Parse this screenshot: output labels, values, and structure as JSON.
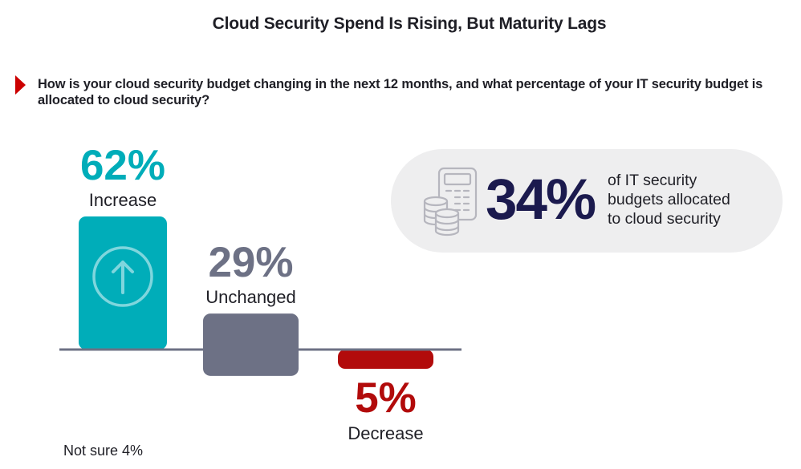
{
  "header": {
    "title": "Cloud Security Spend Is Rising, But Maturity Lags",
    "question": "How is your cloud security budget changing in the next 12 months, and what percentage of your IT security budget is allocated to cloud security?"
  },
  "callout": {
    "icon": "calculator-coins-icon",
    "value": "34%",
    "text_lines": [
      "of IT security",
      "budgets allocated",
      "to cloud security"
    ]
  },
  "footnote": "Not sure 4%",
  "colors": {
    "increase": "#00adb9",
    "unchanged": "#6d7185",
    "decrease": "#b20b0b",
    "baseline": "#6d7185",
    "callout_value": "#1b1a4e",
    "marker": "#cc0000"
  },
  "chart_data": {
    "type": "bar",
    "title": "Cloud Security Spend Is Rising, But Maturity Lags",
    "subtitle": "How is your cloud security budget changing in the next 12 months, and what percentage of your IT security budget is allocated to cloud security?",
    "categories": [
      "Increase",
      "Unchanged",
      "Decrease"
    ],
    "values": [
      62,
      29,
      5
    ],
    "direction": [
      "up",
      "neutral",
      "down"
    ],
    "value_labels": [
      "62%",
      "29%",
      "5%"
    ],
    "unit": "%",
    "xlabel": "",
    "ylabel": "",
    "grid": false,
    "legend": "none",
    "annotations": [
      "Not sure 4%",
      "34% of IT security budgets allocated to cloud security"
    ]
  }
}
